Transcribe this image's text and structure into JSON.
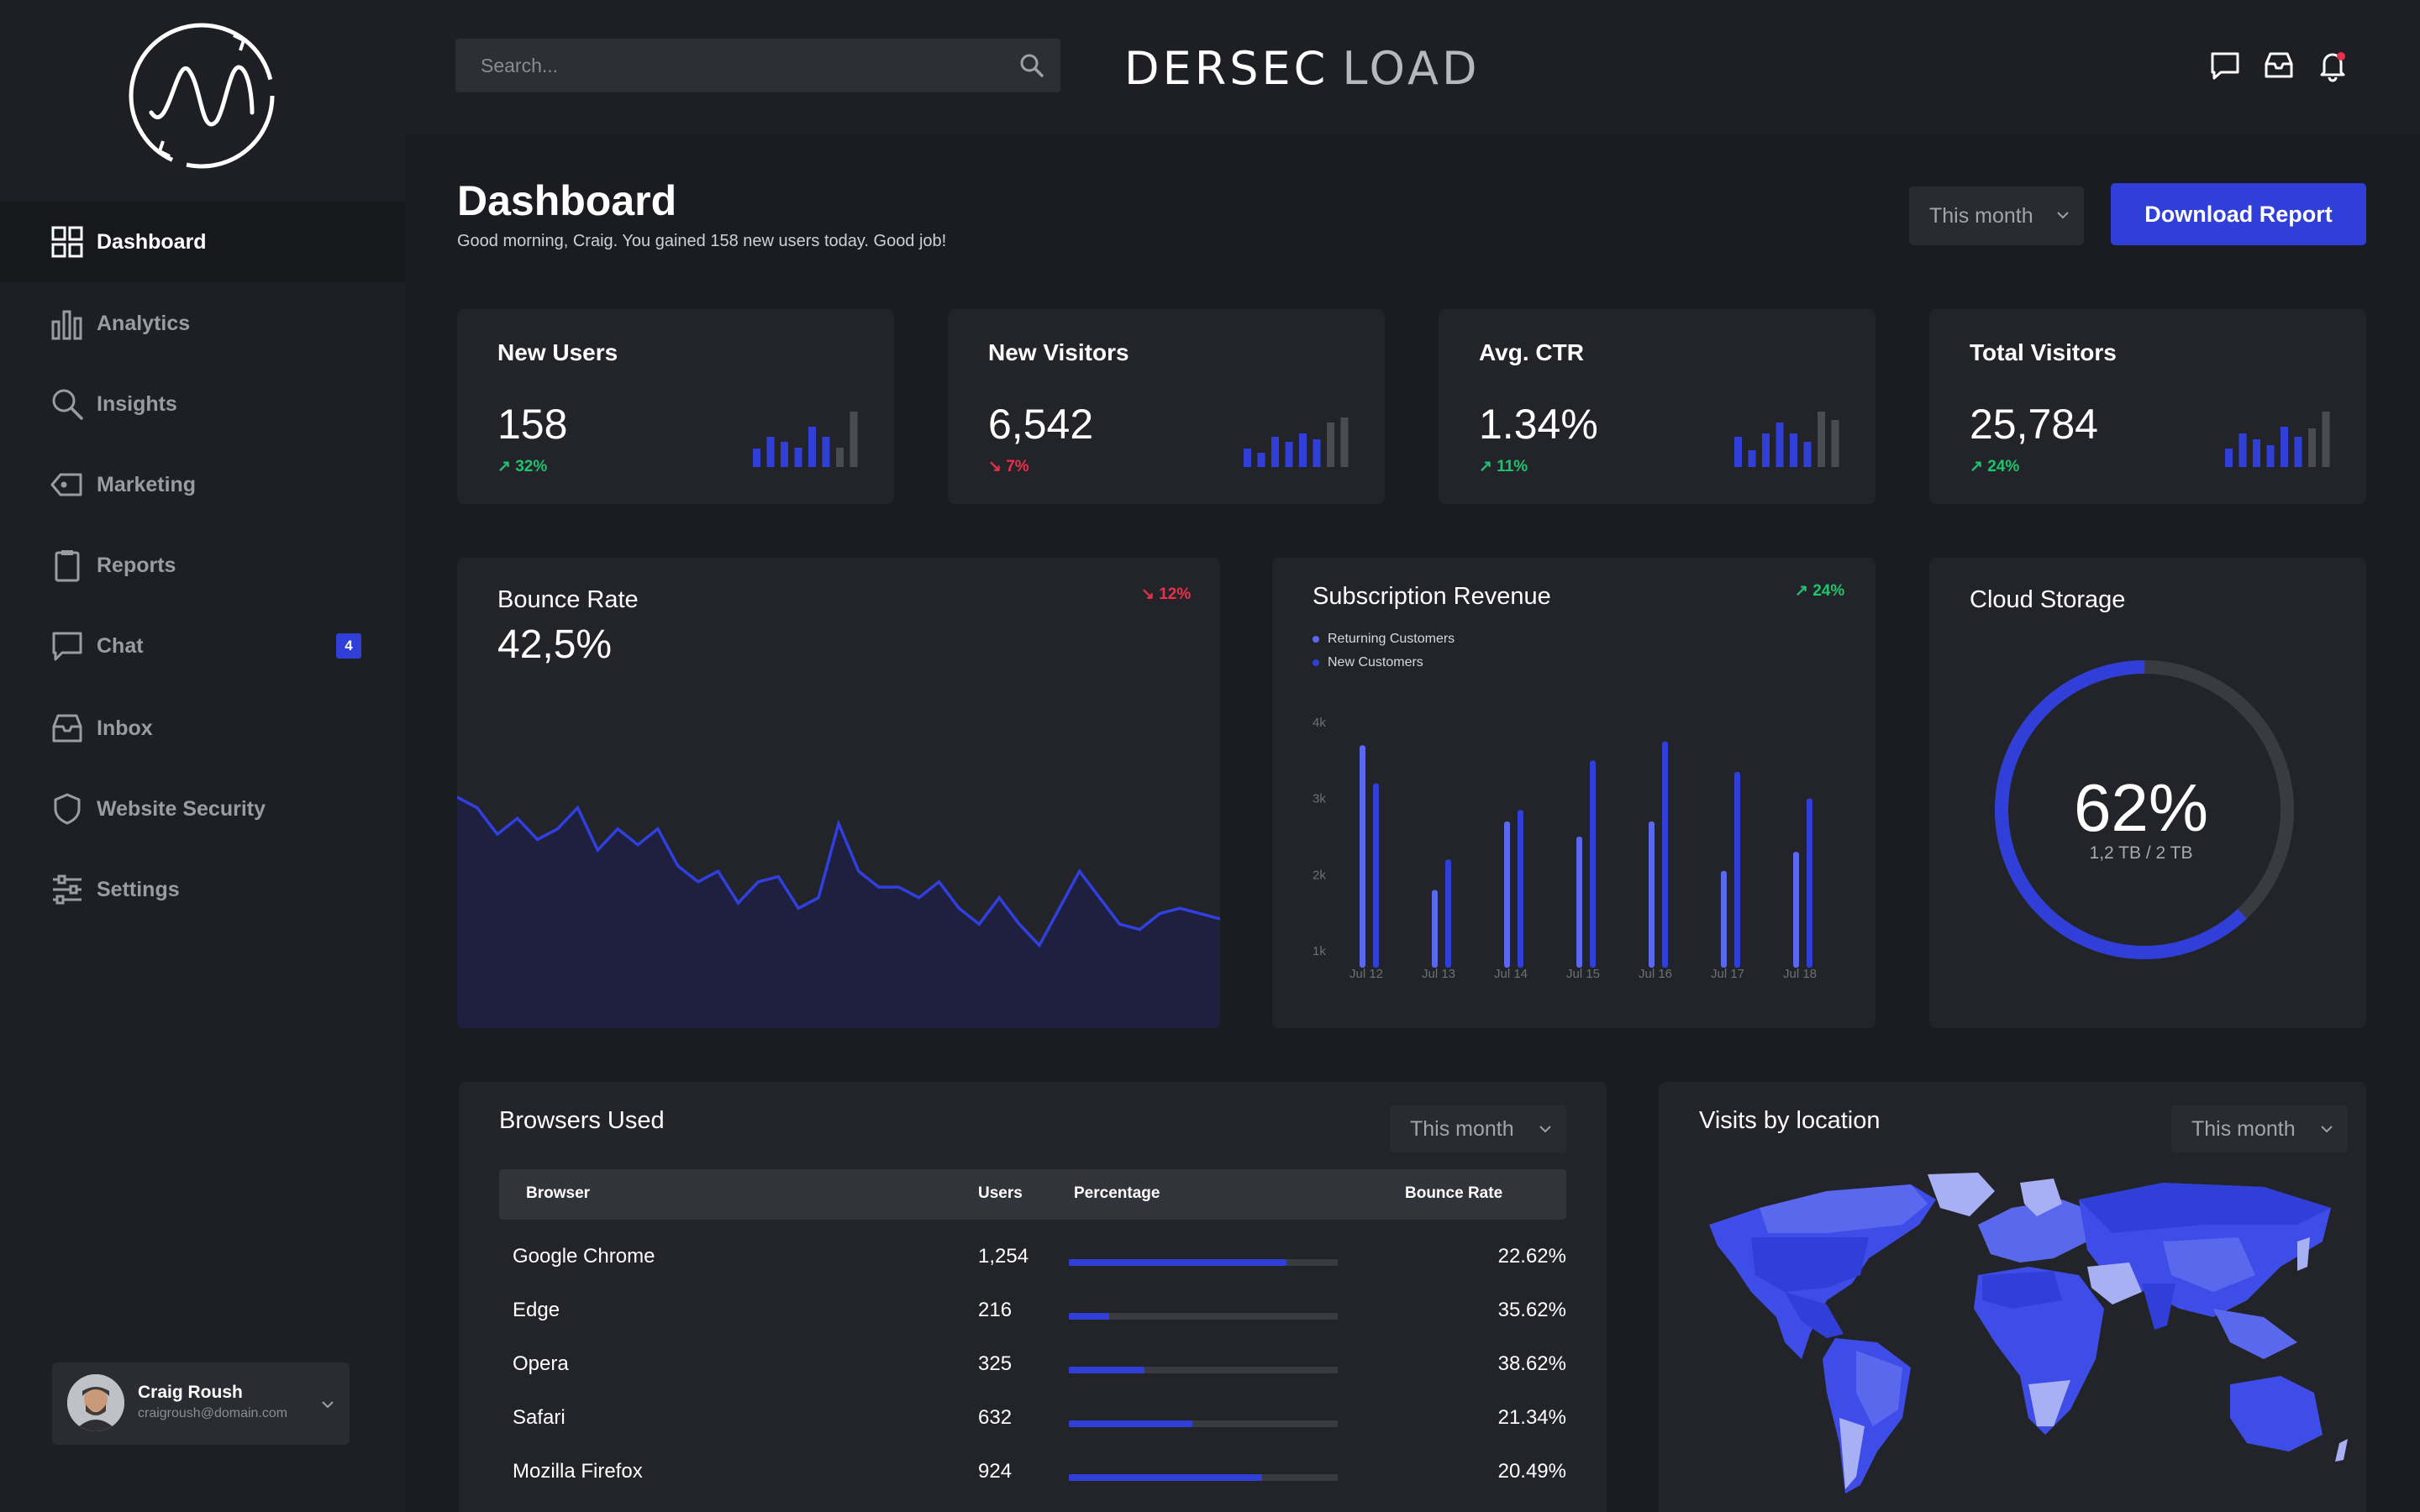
{
  "brand": {
    "part1": "DERSEC",
    "part2": "LOAD"
  },
  "search": {
    "placeholder": "Search..."
  },
  "nav": [
    {
      "label": "Dashboard",
      "icon": "grid-icon",
      "active": true
    },
    {
      "label": "Analytics",
      "icon": "bar-chart-icon"
    },
    {
      "label": "Insights",
      "icon": "search-icon"
    },
    {
      "label": "Marketing",
      "icon": "tag-icon"
    },
    {
      "label": "Reports",
      "icon": "clipboard-icon"
    },
    {
      "label": "Chat",
      "icon": "chat-icon",
      "badge": "4"
    },
    {
      "label": "Inbox",
      "icon": "inbox-icon"
    },
    {
      "label": "Website Security",
      "icon": "shield-icon"
    },
    {
      "label": "Settings",
      "icon": "sliders-icon"
    }
  ],
  "user": {
    "name": "Craig Roush",
    "email": "craigroush@domain.com"
  },
  "page": {
    "title": "Dashboard",
    "subtitle": "Good morning, Craig. You gained 158 new users today. Good job!",
    "range": "This month",
    "download_label": "Download Report"
  },
  "stats": [
    {
      "title": "New Users",
      "value": "158",
      "change": "↗ 32%",
      "direction": "up",
      "bars": [
        0.33,
        0.55,
        0.45,
        0.35,
        0.72,
        0.55,
        0.35,
        1.0
      ]
    },
    {
      "title": "New Visitors",
      "value": "6,542",
      "change": "↘ 7%",
      "direction": "down",
      "bars": [
        0.33,
        0.25,
        0.55,
        0.45,
        0.6,
        0.5,
        0.8,
        0.9
      ]
    },
    {
      "title": "Avg. CTR",
      "value": "1.34%",
      "change": "↗ 11%",
      "direction": "up",
      "bars": [
        0.55,
        0.3,
        0.6,
        0.8,
        0.6,
        0.45,
        1.0,
        0.85
      ]
    },
    {
      "title": "Total Visitors",
      "value": "25,784",
      "change": "↗ 24%",
      "direction": "up",
      "bars": [
        0.33,
        0.6,
        0.5,
        0.4,
        0.72,
        0.55,
        0.7,
        1.0
      ]
    }
  ],
  "bounce": {
    "title": "Bounce Rate",
    "value": "42,5%",
    "change": "↘ 12%"
  },
  "subscription": {
    "title": "Subscription Revenue",
    "change": "↗ 24%",
    "legend": [
      "Returning Customers",
      "New Customers"
    ]
  },
  "storage": {
    "title": "Cloud Storage",
    "percent_label": "62%",
    "detail": "1,2 TB / 2 TB",
    "percent": 0.62
  },
  "browsers": {
    "title": "Browsers Used",
    "range": "This month",
    "columns": [
      "Browser",
      "Users",
      "Percentage",
      "Bounce Rate"
    ],
    "rows": [
      {
        "name": "Google Chrome",
        "users": "1,254",
        "share": 0.81,
        "bounce": "22.62%"
      },
      {
        "name": "Edge",
        "users": "216",
        "share": 0.15,
        "bounce": "35.62%"
      },
      {
        "name": "Opera",
        "users": "325",
        "share": 0.28,
        "bounce": "38.62%"
      },
      {
        "name": "Safari",
        "users": "632",
        "share": 0.46,
        "bounce": "21.34%"
      },
      {
        "name": "Mozilla Firefox",
        "users": "924",
        "share": 0.72,
        "bounce": "20.49%"
      }
    ]
  },
  "visits": {
    "title": "Visits by location",
    "range": "This month"
  },
  "colors": {
    "accent": "#2f3fd8",
    "up": "#1fc36f",
    "down": "#e8304b",
    "light_blue": "#5a68ee"
  },
  "chart_data": [
    {
      "type": "area",
      "title": "Bounce Rate",
      "x": [
        0,
        1,
        2,
        3,
        4,
        5,
        6,
        7,
        8,
        9,
        10,
        11,
        12,
        13,
        14,
        15,
        16,
        17,
        18,
        19,
        20,
        21,
        22,
        23,
        24,
        25,
        26,
        27,
        28,
        29,
        30,
        31,
        32,
        33,
        34,
        35,
        36,
        37,
        38
      ],
      "values": [
        50,
        48,
        43,
        46,
        42,
        44,
        48,
        40,
        44,
        41,
        44,
        37,
        34,
        36,
        30,
        34,
        35,
        29,
        31,
        45,
        36,
        33,
        33,
        31,
        34,
        29,
        26,
        31,
        26,
        22,
        29,
        36,
        31,
        26,
        25,
        28,
        29,
        28,
        27
      ],
      "ylim": [
        0,
        100
      ]
    },
    {
      "type": "bar",
      "title": "Subscription Revenue",
      "categories": [
        "Jul 12",
        "Jul 13",
        "Jul 14",
        "Jul 15",
        "Jul 16",
        "Jul 17",
        "Jul 18"
      ],
      "series": [
        {
          "name": "Returning Customers",
          "values": [
            3.7,
            1.8,
            2.7,
            2.5,
            2.7,
            2.05,
            2.3
          ]
        },
        {
          "name": "New Customers",
          "values": [
            3.2,
            2.2,
            2.85,
            3.5,
            3.75,
            3.35,
            3.0
          ]
        }
      ],
      "yticks": [
        "1k",
        "2k",
        "3k",
        "4k"
      ],
      "ylim": [
        1,
        4
      ]
    }
  ]
}
